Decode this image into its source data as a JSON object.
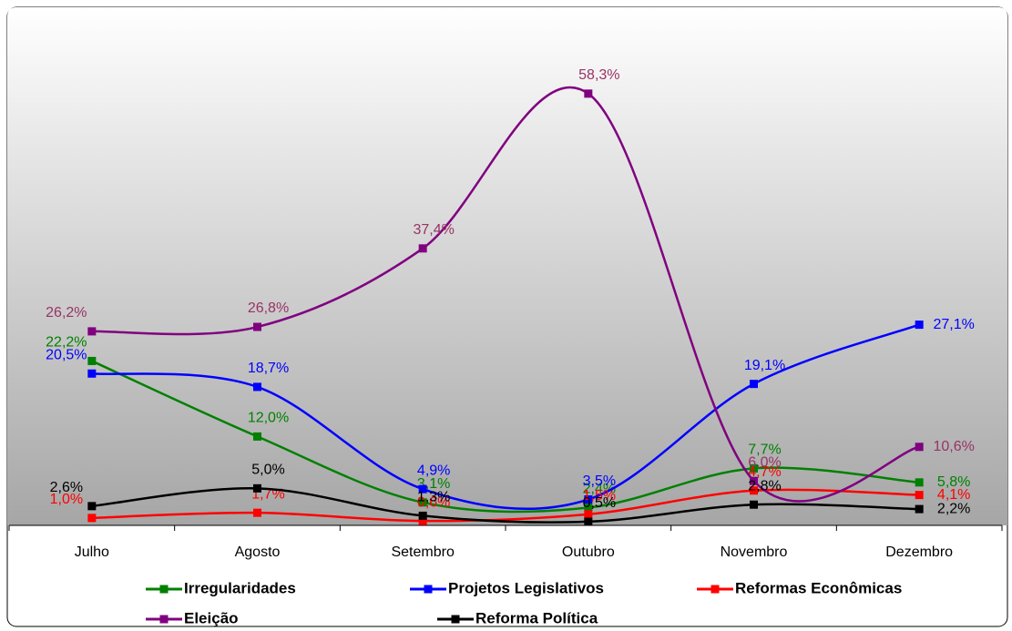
{
  "chart_data": {
    "type": "line",
    "categories": [
      "Julho",
      "Agosto",
      "Setembro",
      "Outubro",
      "Novembro",
      "Dezembro"
    ],
    "ylim": [
      0,
      60
    ],
    "series": [
      {
        "name": "Irregularidades",
        "color": "#008000",
        "values": [
          22.2,
          12.0,
          3.1,
          2.4,
          7.7,
          5.8
        ],
        "value_labels": [
          "22,2%",
          "12,0%",
          "3,1%",
          "2,4%",
          "7,7%",
          "5,8%"
        ]
      },
      {
        "name": "Projetos Legislativos",
        "color": "#0000ff",
        "values": [
          20.5,
          18.7,
          4.9,
          3.5,
          19.1,
          27.1
        ],
        "value_labels": [
          "20,5%",
          "18,7%",
          "4,9%",
          "3,5%",
          "19,1%",
          "27,1%"
        ]
      },
      {
        "name": "Reformas Econômicas",
        "color": "#ff0000",
        "values": [
          1.0,
          1.7,
          0.6,
          1.5,
          4.7,
          4.1
        ],
        "value_labels": [
          "1,0%",
          "1,7%",
          "0,6%",
          "1,5%",
          "4,7%",
          "4,1%"
        ]
      },
      {
        "name": "Eleição",
        "color": "#800080",
        "values": [
          26.2,
          26.8,
          37.4,
          58.3,
          6.0,
          10.6
        ],
        "value_labels": [
          "26,2%",
          "26,8%",
          "37,4%",
          "58,3%",
          "6,0%",
          "10,6%"
        ]
      },
      {
        "name": "Reforma Política",
        "color": "#000000",
        "values": [
          2.6,
          5.0,
          1.3,
          0.5,
          2.8,
          2.2
        ],
        "value_labels": [
          "2,6%",
          "5,0%",
          "1,3%",
          "0,5%",
          "2,8%",
          "2,2%"
        ]
      }
    ]
  }
}
